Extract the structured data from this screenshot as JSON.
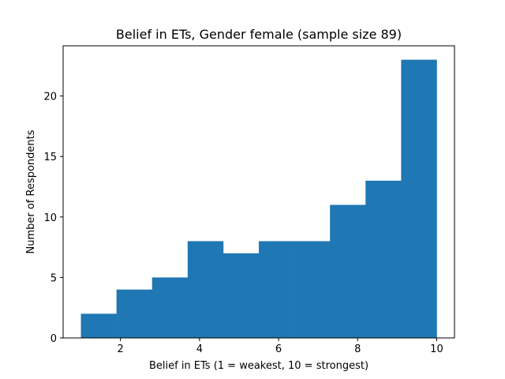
{
  "chart_data": {
    "type": "bar",
    "title": "Belief in ETs, Gender female (sample size 89)",
    "xlabel": "Belief in ETs (1 = weakest, 10 = strongest)",
    "ylabel": "Number of Respondents",
    "xlim": [
      0.55,
      10.45
    ],
    "ylim": [
      0,
      24.15
    ],
    "bin_edges": [
      1,
      1.9,
      2.8,
      3.7,
      4.6,
      5.5,
      6.4,
      7.3,
      8.2,
      9.1,
      10
    ],
    "values": [
      2,
      4,
      5,
      8,
      7,
      8,
      8,
      11,
      13,
      23
    ],
    "x_ticks": [
      2,
      4,
      6,
      8,
      10
    ],
    "y_ticks": [
      0,
      5,
      10,
      15,
      20
    ],
    "grid": false,
    "bar_color": "#1f77b4"
  }
}
